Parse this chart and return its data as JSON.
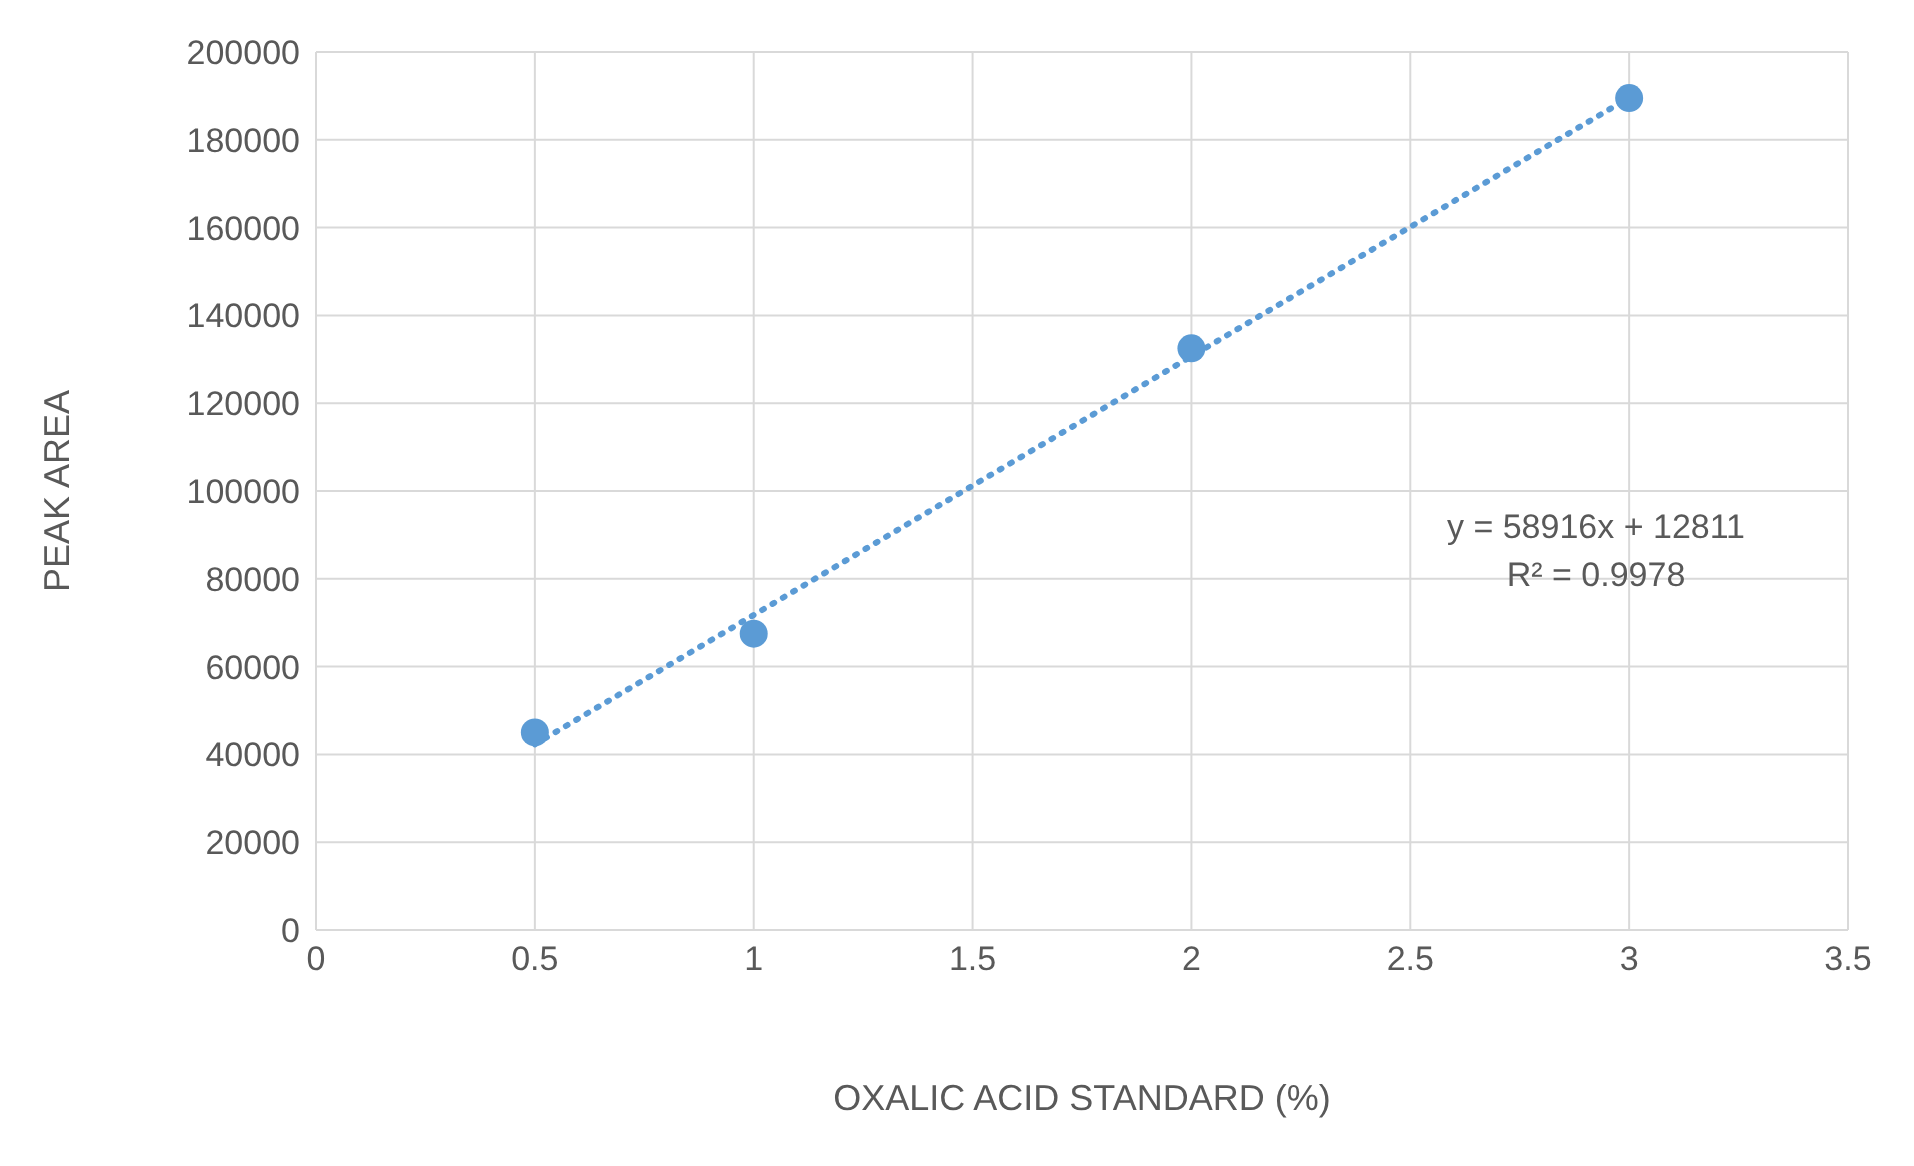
{
  "chart_data": {
    "type": "scatter",
    "xlabel": "OXALIC ACID STANDARD (%)",
    "ylabel": "PEAK AREA",
    "series": [
      {
        "color": "#5b9bd5",
        "x": [
          0.5,
          1,
          2,
          3
        ],
        "values": [
          45000,
          67500,
          132500,
          189500
        ],
        "marker": "circle"
      },
      {
        "type": "line",
        "color": "#5b9bd5",
        "x": [
          0.5,
          3
        ],
        "values": [
          42300,
          189600
        ],
        "line_style": "dotted",
        "marker": "none"
      }
    ],
    "xlim": [
      0,
      3.5
    ],
    "xticks": [
      0,
      0.5,
      1,
      1.5,
      2,
      2.5,
      3,
      3.5
    ],
    "ylim": [
      0,
      200000
    ],
    "yticks": [
      0,
      20000,
      40000,
      60000,
      80000,
      100000,
      120000,
      140000,
      160000,
      180000,
      200000
    ],
    "grid": true,
    "annotations": [
      "y = 58916x + 12811",
      "R² = 0.9978"
    ]
  }
}
